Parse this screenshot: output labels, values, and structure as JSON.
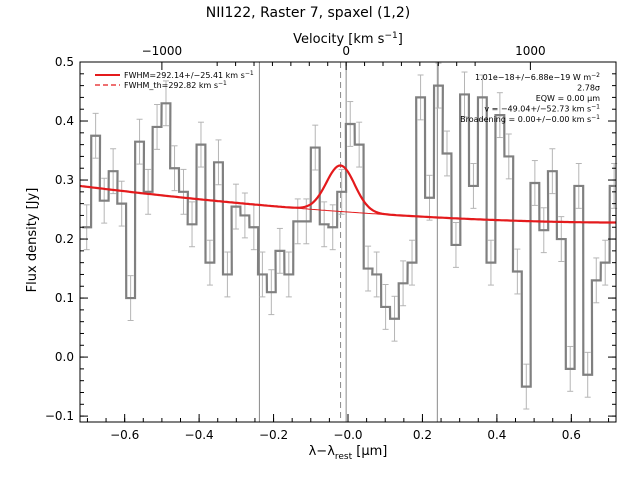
{
  "chart_data": {
    "type": "line",
    "title": "NII122, Raster 7, spaxel (1,2)",
    "xlabel": "λ−λ",
    "xlabel_sub": "rest",
    "xlabel_unit": " [μm]",
    "ylabel": "Flux density [Jy]",
    "top_axis_label": "Velocity [km s",
    "top_axis_label_sup": "−1",
    "top_axis_label_end": "]",
    "xlim": [
      -0.72,
      0.72
    ],
    "ylim": [
      -0.11,
      0.5
    ],
    "xticks": [
      -0.6,
      -0.4,
      -0.2,
      0.0,
      0.2,
      0.4,
      0.6
    ],
    "xtick_labels": [
      "−0.6",
      "−0.4",
      "−0.2",
      "−0.0",
      "0.2",
      "0.4",
      "0.6"
    ],
    "yticks": [
      -0.1,
      0.0,
      0.1,
      0.2,
      0.3,
      0.4,
      0.5
    ],
    "ytick_labels": [
      "−0.1",
      "0.0",
      "0.1",
      "0.2",
      "0.3",
      "0.4",
      "0.5"
    ],
    "top_ticks": [
      -1000,
      0,
      1000
    ],
    "top_tick_labels": [
      "−1000",
      "0",
      "1000"
    ],
    "top_tick_x": [
      -0.5,
      -0.005,
      0.49
    ],
    "vlines": [
      -0.238,
      -0.005,
      0.24
    ],
    "dashed_vline": -0.02,
    "bin_width": 0.0236,
    "spectrum": {
      "x": [
        -0.702,
        -0.678,
        -0.655,
        -0.631,
        -0.608,
        -0.584,
        -0.56,
        -0.537,
        -0.513,
        -0.489,
        -0.466,
        -0.442,
        -0.419,
        -0.395,
        -0.371,
        -0.348,
        -0.324,
        -0.301,
        -0.277,
        -0.253,
        -0.23,
        -0.206,
        -0.183,
        -0.159,
        -0.135,
        -0.112,
        -0.088,
        -0.064,
        -0.041,
        -0.017,
        0.006,
        0.03,
        0.054,
        0.077,
        0.101,
        0.125,
        0.148,
        0.172,
        0.195,
        0.219,
        0.243,
        0.266,
        0.29,
        0.313,
        0.337,
        0.361,
        0.384,
        0.408,
        0.432,
        0.455,
        0.479,
        0.502,
        0.526,
        0.549,
        0.573,
        0.597,
        0.62,
        0.644,
        0.667,
        0.691,
        0.715
      ],
      "y": [
        0.22,
        0.375,
        0.265,
        0.315,
        0.26,
        0.1,
        0.365,
        0.28,
        0.39,
        0.43,
        0.32,
        0.28,
        0.225,
        0.36,
        0.16,
        0.33,
        0.14,
        0.255,
        0.24,
        0.22,
        0.14,
        0.11,
        0.18,
        0.14,
        0.23,
        0.23,
        0.355,
        0.225,
        0.22,
        0.28,
        0.395,
        0.36,
        0.15,
        0.14,
        0.085,
        0.065,
        0.125,
        0.16,
        0.44,
        0.27,
        0.46,
        0.345,
        0.19,
        0.445,
        0.29,
        0.44,
        0.16,
        0.41,
        0.34,
        0.145,
        -0.05,
        0.295,
        0.215,
        0.315,
        0.2,
        -0.02,
        0.29,
        -0.03,
        0.13,
        0.16,
        0.29
      ],
      "err": 0.038
    },
    "fit": {
      "baseline_start": 0.29,
      "baseline_end": 0.228,
      "gaussian_center": -0.02,
      "gaussian_peak": 0.078,
      "gaussian_sigma": 0.038
    },
    "legend": [
      {
        "label": "FWHM=292.14+/−25.41 km s",
        "sup": "−1",
        "style": "solid",
        "color": "#e41a1c"
      },
      {
        "label": "FWHM_th=292.82 km s",
        "sup": "−1",
        "style": "dashed",
        "color": "#e41a1c"
      }
    ],
    "annotations": [
      {
        "text": "1.01e−18+/−6.88e−19 W m",
        "sup": "−2"
      },
      {
        "text": "2.78σ",
        "sup": ""
      },
      {
        "text": "EQW = 0.00 μm",
        "sup": ""
      },
      {
        "text": "v = −49.04+/−52.73 km s",
        "sup": "−1"
      },
      {
        "text": "Broadening = 0.00+/−0.00 km s",
        "sup": "−1"
      }
    ],
    "colors": {
      "data": "#808080",
      "err": "#b5b5b5",
      "fit": "#e41a1c",
      "axis": "#000000"
    }
  }
}
